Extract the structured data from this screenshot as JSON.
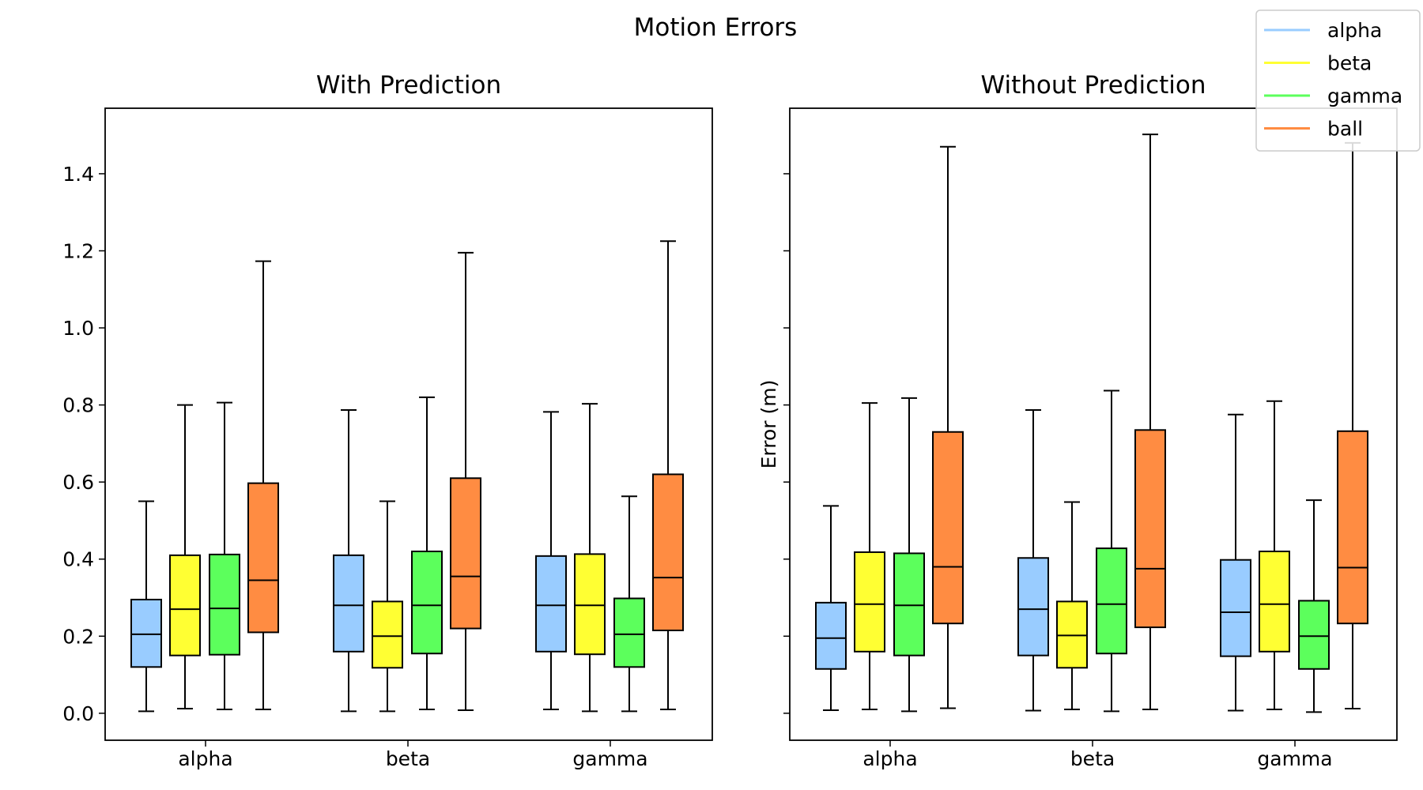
{
  "chart_data": {
    "type": "box",
    "title": "Motion Errors",
    "ylabel": "Error (m)",
    "ylim": [
      -0.07,
      1.57
    ],
    "yticks": [
      "0.0",
      "0.2",
      "0.4",
      "0.6",
      "0.8",
      "1.0",
      "1.2",
      "1.4"
    ],
    "categories": [
      "alpha",
      "beta",
      "gamma"
    ],
    "legend": {
      "placement": "top-right",
      "entries": [
        {
          "label": "alpha",
          "color": "#99CCFF"
        },
        {
          "label": "beta",
          "color": "#FFFF33"
        },
        {
          "label": "gamma",
          "color": "#5CFF5C"
        },
        {
          "label": "ball",
          "color": "#FF8C42"
        }
      ]
    },
    "panels": [
      {
        "title": "With Prediction",
        "groups": [
          {
            "category": "alpha",
            "boxes": [
              {
                "series": "alpha",
                "whislo": 0.005,
                "q1": 0.12,
                "median": 0.205,
                "q3": 0.295,
                "whishi": 0.55
              },
              {
                "series": "beta",
                "whislo": 0.012,
                "q1": 0.15,
                "median": 0.27,
                "q3": 0.41,
                "whishi": 0.8
              },
              {
                "series": "gamma",
                "whislo": 0.01,
                "q1": 0.152,
                "median": 0.272,
                "q3": 0.412,
                "whishi": 0.806
              },
              {
                "series": "ball",
                "whislo": 0.01,
                "q1": 0.21,
                "median": 0.345,
                "q3": 0.597,
                "whishi": 1.173
              }
            ]
          },
          {
            "category": "beta",
            "boxes": [
              {
                "series": "alpha",
                "whislo": 0.005,
                "q1": 0.16,
                "median": 0.28,
                "q3": 0.41,
                "whishi": 0.787
              },
              {
                "series": "beta",
                "whislo": 0.005,
                "q1": 0.118,
                "median": 0.2,
                "q3": 0.29,
                "whishi": 0.55
              },
              {
                "series": "gamma",
                "whislo": 0.01,
                "q1": 0.155,
                "median": 0.28,
                "q3": 0.42,
                "whishi": 0.82
              },
              {
                "series": "ball",
                "whislo": 0.008,
                "q1": 0.22,
                "median": 0.355,
                "q3": 0.61,
                "whishi": 1.195
              }
            ]
          },
          {
            "category": "gamma",
            "boxes": [
              {
                "series": "alpha",
                "whislo": 0.01,
                "q1": 0.16,
                "median": 0.28,
                "q3": 0.408,
                "whishi": 0.782
              },
              {
                "series": "beta",
                "whislo": 0.005,
                "q1": 0.153,
                "median": 0.28,
                "q3": 0.413,
                "whishi": 0.803
              },
              {
                "series": "gamma",
                "whislo": 0.005,
                "q1": 0.12,
                "median": 0.205,
                "q3": 0.298,
                "whishi": 0.563
              },
              {
                "series": "ball",
                "whislo": 0.01,
                "q1": 0.215,
                "median": 0.352,
                "q3": 0.62,
                "whishi": 1.225
              }
            ]
          }
        ]
      },
      {
        "title": "Without Prediction",
        "groups": [
          {
            "category": "alpha",
            "boxes": [
              {
                "series": "alpha",
                "whislo": 0.008,
                "q1": 0.115,
                "median": 0.195,
                "q3": 0.287,
                "whishi": 0.538
              },
              {
                "series": "beta",
                "whislo": 0.01,
                "q1": 0.16,
                "median": 0.283,
                "q3": 0.418,
                "whishi": 0.805
              },
              {
                "series": "gamma",
                "whislo": 0.005,
                "q1": 0.15,
                "median": 0.28,
                "q3": 0.415,
                "whishi": 0.818
              },
              {
                "series": "ball",
                "whislo": 0.013,
                "q1": 0.233,
                "median": 0.38,
                "q3": 0.73,
                "whishi": 1.47
              }
            ]
          },
          {
            "category": "beta",
            "boxes": [
              {
                "series": "alpha",
                "whislo": 0.007,
                "q1": 0.15,
                "median": 0.27,
                "q3": 0.403,
                "whishi": 0.787
              },
              {
                "series": "beta",
                "whislo": 0.01,
                "q1": 0.118,
                "median": 0.202,
                "q3": 0.29,
                "whishi": 0.548
              },
              {
                "series": "gamma",
                "whislo": 0.005,
                "q1": 0.155,
                "median": 0.283,
                "q3": 0.428,
                "whishi": 0.837
              },
              {
                "series": "ball",
                "whislo": 0.01,
                "q1": 0.223,
                "median": 0.375,
                "q3": 0.735,
                "whishi": 1.502
              }
            ]
          },
          {
            "category": "gamma",
            "boxes": [
              {
                "series": "alpha",
                "whislo": 0.007,
                "q1": 0.148,
                "median": 0.262,
                "q3": 0.398,
                "whishi": 0.775
              },
              {
                "series": "beta",
                "whislo": 0.01,
                "q1": 0.16,
                "median": 0.283,
                "q3": 0.42,
                "whishi": 0.81
              },
              {
                "series": "gamma",
                "whislo": 0.003,
                "q1": 0.115,
                "median": 0.2,
                "q3": 0.292,
                "whishi": 0.553
              },
              {
                "series": "ball",
                "whislo": 0.012,
                "q1": 0.233,
                "median": 0.378,
                "q3": 0.732,
                "whishi": 1.48
              }
            ]
          }
        ]
      }
    ]
  }
}
